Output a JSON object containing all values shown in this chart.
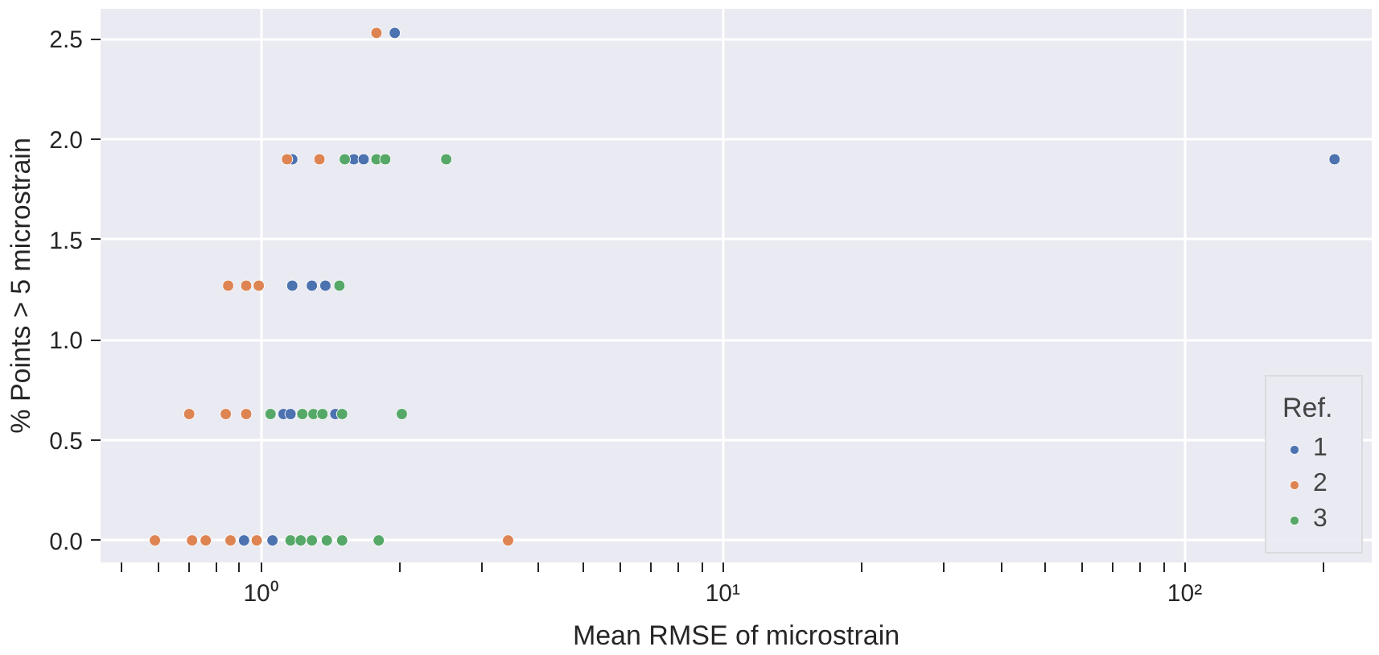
{
  "chart_data": {
    "type": "scatter",
    "xlabel": "Mean RMSE of microstrain",
    "ylabel": "% Points > 5 microstrain",
    "legend_title": "Ref.",
    "log": "x",
    "grid": true,
    "legend": "bottom right",
    "marker": "circle",
    "xlim": [
      0.45,
      254
    ],
    "ylim": [
      -0.11,
      2.65
    ],
    "xticks": [
      {
        "value": 0.5,
        "label": null
      },
      {
        "value": 0.6,
        "label": null
      },
      {
        "value": 0.7,
        "label": null
      },
      {
        "value": 0.8,
        "label": null
      },
      {
        "value": 0.9,
        "label": null
      },
      {
        "value": 1,
        "label": "10⁰"
      },
      {
        "value": 2,
        "label": null
      },
      {
        "value": 3,
        "label": null
      },
      {
        "value": 4,
        "label": null
      },
      {
        "value": 5,
        "label": null
      },
      {
        "value": 6,
        "label": null
      },
      {
        "value": 7,
        "label": null
      },
      {
        "value": 8,
        "label": null
      },
      {
        "value": 9,
        "label": null
      },
      {
        "value": 10,
        "label": "10¹"
      },
      {
        "value": 20,
        "label": null
      },
      {
        "value": 30,
        "label": null
      },
      {
        "value": 40,
        "label": null
      },
      {
        "value": 50,
        "label": null
      },
      {
        "value": 60,
        "label": null
      },
      {
        "value": 70,
        "label": null
      },
      {
        "value": 80,
        "label": null
      },
      {
        "value": 90,
        "label": null
      },
      {
        "value": 100,
        "label": "10²"
      },
      {
        "value": 200,
        "label": null
      }
    ],
    "yticks": [
      {
        "value": 0,
        "label": "0.0"
      },
      {
        "value": 0.5,
        "label": "0.5"
      },
      {
        "value": 1,
        "label": "1.0"
      },
      {
        "value": 1.5,
        "label": "1.5"
      },
      {
        "value": 2,
        "label": "2.0"
      },
      {
        "value": 2.5,
        "label": "2.5"
      }
    ],
    "series": [
      {
        "name": "1",
        "color": "#4c72b0",
        "x": [
          1.95,
          1.17,
          1.59,
          1.67,
          211,
          1.17,
          1.29,
          1.38,
          1.12,
          1.16,
          1.45,
          0.92,
          1.06
        ],
        "values": [
          2.53,
          1.9,
          1.9,
          1.9,
          1.9,
          1.27,
          1.27,
          1.27,
          0.63,
          0.63,
          0.63,
          0,
          0
        ]
      },
      {
        "name": "2",
        "color": "#dd8452",
        "x": [
          1.78,
          1.14,
          1.34,
          0.85,
          0.93,
          0.99,
          0.7,
          0.84,
          0.93,
          0.59,
          0.71,
          0.76,
          0.86,
          0.98,
          3.43
        ],
        "values": [
          2.53,
          1.9,
          1.9,
          1.27,
          1.27,
          1.27,
          0.63,
          0.63,
          0.63,
          0,
          0,
          0,
          0,
          0,
          0
        ]
      },
      {
        "name": "3",
        "color": "#55a868",
        "x": [
          1.52,
          1.78,
          1.86,
          2.52,
          1.48,
          1.05,
          1.23,
          1.3,
          1.36,
          1.5,
          2.02,
          1.16,
          1.22,
          1.29,
          1.39,
          1.5,
          1.8
        ],
        "values": [
          1.9,
          1.9,
          1.9,
          1.9,
          1.27,
          0.63,
          0.63,
          0.63,
          0.63,
          0.63,
          0.63,
          0,
          0,
          0,
          0,
          0,
          0
        ]
      }
    ]
  }
}
